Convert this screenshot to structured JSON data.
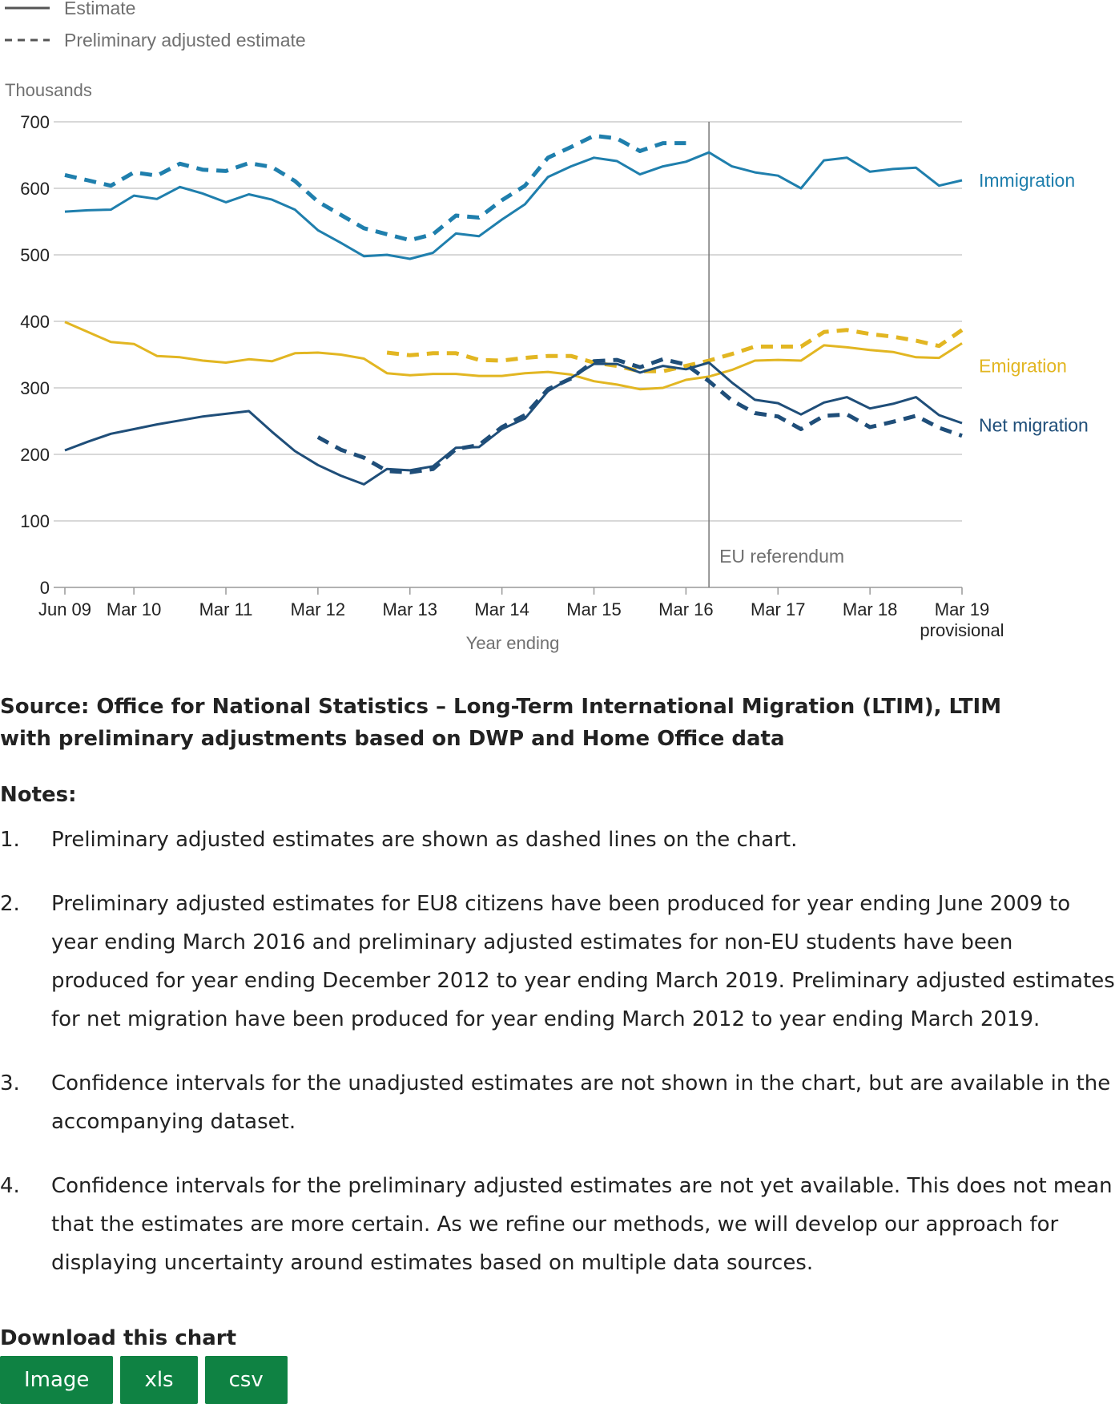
{
  "chart_data": {
    "type": "line",
    "legend": {
      "placement": "top-left",
      "items": [
        {
          "label": "Estimate",
          "style": "solid"
        },
        {
          "label": "Preliminary adjusted estimate",
          "style": "dashed"
        }
      ]
    },
    "ylabel": "Thousands",
    "xlabel": "Year ending",
    "ylim": [
      0,
      700
    ],
    "yticks": [
      0,
      100,
      200,
      300,
      400,
      500,
      600,
      700
    ],
    "grid": true,
    "xticks": [
      {
        "label": "Jun 09",
        "sublabel": ""
      },
      {
        "label": "Mar 10",
        "sublabel": ""
      },
      {
        "label": "Mar 11",
        "sublabel": ""
      },
      {
        "label": "Mar 12",
        "sublabel": ""
      },
      {
        "label": "Mar 13",
        "sublabel": ""
      },
      {
        "label": "Mar 14",
        "sublabel": ""
      },
      {
        "label": "Mar 15",
        "sublabel": ""
      },
      {
        "label": "Mar 16",
        "sublabel": ""
      },
      {
        "label": "Mar 17",
        "sublabel": ""
      },
      {
        "label": "Mar 18",
        "sublabel": ""
      },
      {
        "label": "Mar 19",
        "sublabel": "provisional"
      }
    ],
    "x": [
      "Jun 09",
      "Sep 09",
      "Dec 09",
      "Mar 10",
      "Jun 10",
      "Sep 10",
      "Dec 10",
      "Mar 11",
      "Jun 11",
      "Sep 11",
      "Dec 11",
      "Mar 12",
      "Jun 12",
      "Sep 12",
      "Dec 12",
      "Mar 13",
      "Jun 13",
      "Sep 13",
      "Dec 13",
      "Mar 14",
      "Jun 14",
      "Sep 14",
      "Dec 14",
      "Mar 15",
      "Jun 15",
      "Sep 15",
      "Dec 15",
      "Mar 16",
      "Jun 16",
      "Sep 16",
      "Dec 16",
      "Mar 17",
      "Jun 17",
      "Sep 17",
      "Dec 17",
      "Mar 18",
      "Jun 18",
      "Sep 18",
      "Dec 18",
      "Mar 19"
    ],
    "annotation": {
      "label": "EU referendum",
      "at": "Jun 16"
    },
    "series": [
      {
        "name": "Immigration",
        "style": "solid",
        "color": "#1f7fad",
        "values": [
          565,
          567,
          568,
          589,
          584,
          602,
          592,
          579,
          591,
          583,
          568,
          537,
          518,
          498,
          500,
          494,
          503,
          532,
          528,
          553,
          576,
          617,
          633,
          646,
          641,
          621,
          633,
          640,
          654,
          633,
          624,
          619,
          600,
          642,
          646,
          625,
          629,
          631,
          604,
          612
        ]
      },
      {
        "name": "Immigration",
        "style": "dashed",
        "color": "#1f7fad",
        "values": [
          620,
          612,
          604,
          624,
          619,
          637,
          628,
          626,
          638,
          632,
          611,
          580,
          560,
          540,
          531,
          522,
          531,
          559,
          556,
          582,
          604,
          646,
          662,
          679,
          675,
          656,
          668,
          668,
          null,
          null,
          null,
          null,
          null,
          null,
          null,
          null,
          null,
          null,
          null,
          null
        ]
      },
      {
        "name": "Emigration",
        "style": "solid",
        "color": "#e2b622",
        "values": [
          399,
          384,
          369,
          366,
          348,
          346,
          341,
          338,
          343,
          340,
          352,
          353,
          350,
          344,
          322,
          319,
          321,
          321,
          318,
          318,
          322,
          324,
          320,
          310,
          305,
          298,
          300,
          312,
          317,
          327,
          341,
          342,
          341,
          364,
          361,
          357,
          354,
          346,
          345,
          367
        ]
      },
      {
        "name": "Emigration",
        "style": "dashed",
        "color": "#e2b622",
        "values": [
          null,
          null,
          null,
          null,
          null,
          null,
          null,
          null,
          null,
          null,
          null,
          null,
          null,
          null,
          353,
          349,
          352,
          352,
          342,
          341,
          345,
          348,
          348,
          338,
          333,
          325,
          325,
          333,
          341,
          351,
          362,
          362,
          362,
          384,
          387,
          381,
          377,
          371,
          363,
          387
        ]
      },
      {
        "name": "Net migration",
        "style": "solid",
        "color": "#1f4e79",
        "values": [
          206,
          219,
          231,
          238,
          245,
          251,
          257,
          261,
          265,
          234,
          205,
          184,
          168,
          155,
          178,
          176,
          182,
          210,
          211,
          238,
          254,
          295,
          315,
          336,
          336,
          323,
          333,
          328,
          338,
          308,
          282,
          277,
          260,
          278,
          286,
          269,
          276,
          286,
          259,
          247
        ]
      },
      {
        "name": "Net migration",
        "style": "dashed",
        "color": "#1f4e79",
        "values": [
          null,
          null,
          null,
          null,
          null,
          null,
          null,
          null,
          null,
          null,
          null,
          226,
          207,
          195,
          175,
          173,
          178,
          208,
          214,
          241,
          259,
          298,
          314,
          340,
          342,
          331,
          343,
          335,
          310,
          281,
          262,
          257,
          238,
          258,
          260,
          241,
          249,
          258,
          240,
          228
        ]
      }
    ]
  },
  "source": "Source: Office for National Statistics – Long-Term International Migration (LTIM), LTIM with preliminary adjustments based on DWP and Home Office data",
  "notes": {
    "title": "Notes:",
    "items": [
      {
        "num": "1.",
        "text": "Preliminary adjusted estimates are shown as dashed lines on the chart."
      },
      {
        "num": "2.",
        "text": "Preliminary adjusted estimates for EU8 citizens have been produced for year ending June 2009 to year ending March 2016 and preliminary adjusted estimates for non-EU students have been produced for year ending December 2012 to year ending March 2019. Preliminary adjusted estimates for net migration have been produced for year ending March 2012 to year ending March 2019."
      },
      {
        "num": "3.",
        "text": "Confidence intervals for the unadjusted estimates are not shown in the chart, but are available in the accompanying dataset."
      },
      {
        "num": "4.",
        "text": "Confidence intervals for the preliminary adjusted estimates are not yet available. This does not mean that the estimates are more certain. As we refine our methods, we will develop our approach for displaying uncertainty around estimates based on multiple data sources."
      }
    ]
  },
  "download": {
    "title": "Download this chart",
    "buttons": [
      "Image",
      "xls",
      "csv"
    ]
  }
}
